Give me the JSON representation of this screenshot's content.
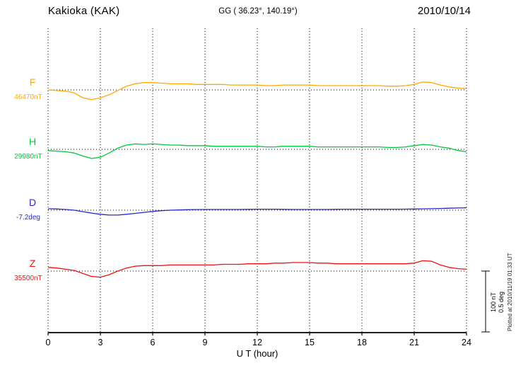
{
  "header": {
    "station": "Kakioka (KAK)",
    "coords": "GG ( 36.23°, 140.19°)",
    "date": "2010/10/14"
  },
  "footer": {
    "plotted_at": "Plotted at 2010/11/19 01:33 UT"
  },
  "chart_data": {
    "type": "line",
    "title": "Kakioka (KAK) magnetogram 2010/10/14",
    "xlabel": "U T (hour)",
    "x_range": [
      0,
      24
    ],
    "x_ticks": [
      0,
      3,
      6,
      9,
      12,
      15,
      18,
      21,
      24
    ],
    "grid": "vertical-dotted",
    "legend_position": "left-of-traces",
    "scale_bar": {
      "nT_label": "100 nT",
      "deg_label": "0.5 deg",
      "nT_span": 100,
      "deg_span": 0.5
    },
    "x": [
      0,
      0.5,
      1,
      1.5,
      2,
      2.5,
      3,
      3.5,
      4,
      4.5,
      5,
      5.5,
      6,
      6.5,
      7,
      7.5,
      8,
      8.5,
      9,
      9.5,
      10,
      10.5,
      11,
      11.5,
      12,
      12.5,
      13,
      13.5,
      14,
      14.5,
      15,
      15.5,
      16,
      16.5,
      17,
      17.5,
      18,
      18.5,
      19,
      19.5,
      20,
      20.5,
      21,
      21.5,
      22,
      22.5,
      23,
      23.5,
      24
    ],
    "series": [
      {
        "name": "F",
        "baseline_label": "46470nT",
        "baseline_value": 46470,
        "unit": "nT",
        "color": "#FFA800",
        "values": [
          0,
          -1,
          -2,
          -5,
          -13,
          -16,
          -13,
          -8,
          -1,
          6,
          10,
          12,
          12,
          11,
          10,
          10,
          10,
          9,
          9,
          9,
          9,
          8,
          8,
          8,
          8,
          7,
          7,
          8,
          8,
          8,
          8,
          7,
          7,
          7,
          7,
          7,
          7,
          7,
          7,
          6,
          6,
          7,
          9,
          13,
          12,
          8,
          5,
          3,
          2
        ]
      },
      {
        "name": "H",
        "baseline_label": "29980nT",
        "baseline_value": 29980,
        "unit": "nT",
        "color": "#00C83C",
        "values": [
          -2,
          -3,
          -4,
          -6,
          -11,
          -15,
          -13,
          -6,
          2,
          7,
          9,
          8,
          9,
          8,
          7,
          7,
          6,
          6,
          6,
          5,
          5,
          5,
          5,
          5,
          5,
          4,
          4,
          5,
          5,
          5,
          5,
          4,
          4,
          4,
          4,
          4,
          4,
          4,
          4,
          3,
          3,
          4,
          6,
          8,
          7,
          4,
          2,
          -2,
          -4
        ]
      },
      {
        "name": "D",
        "baseline_label": "-7.2deg",
        "baseline_value": -7.2,
        "unit": "deg",
        "color": "#2626CC",
        "values": [
          0.012,
          0.01,
          0.006,
          0.0,
          -0.012,
          -0.024,
          -0.034,
          -0.04,
          -0.04,
          -0.034,
          -0.026,
          -0.018,
          -0.01,
          -0.004,
          0.0,
          0.002,
          0.004,
          0.005,
          0.006,
          0.006,
          0.006,
          0.006,
          0.006,
          0.007,
          0.008,
          0.008,
          0.008,
          0.007,
          0.006,
          0.006,
          0.006,
          0.006,
          0.006,
          0.007,
          0.008,
          0.008,
          0.008,
          0.008,
          0.008,
          0.008,
          0.008,
          0.009,
          0.01,
          0.011,
          0.012,
          0.014,
          0.016,
          0.018,
          0.02
        ]
      },
      {
        "name": "Z",
        "baseline_label": "35500nT",
        "baseline_value": 35500,
        "unit": "nT",
        "color": "#EE1111",
        "values": [
          6,
          5,
          3,
          1,
          -4,
          -9,
          -10,
          -6,
          0,
          5,
          8,
          9,
          9,
          9,
          10,
          10,
          10,
          10,
          10,
          10,
          11,
          11,
          11,
          12,
          12,
          12,
          13,
          13,
          14,
          14,
          14,
          13,
          13,
          12,
          12,
          12,
          12,
          12,
          12,
          12,
          12,
          12,
          13,
          17,
          16,
          10,
          6,
          4,
          3
        ]
      }
    ]
  }
}
